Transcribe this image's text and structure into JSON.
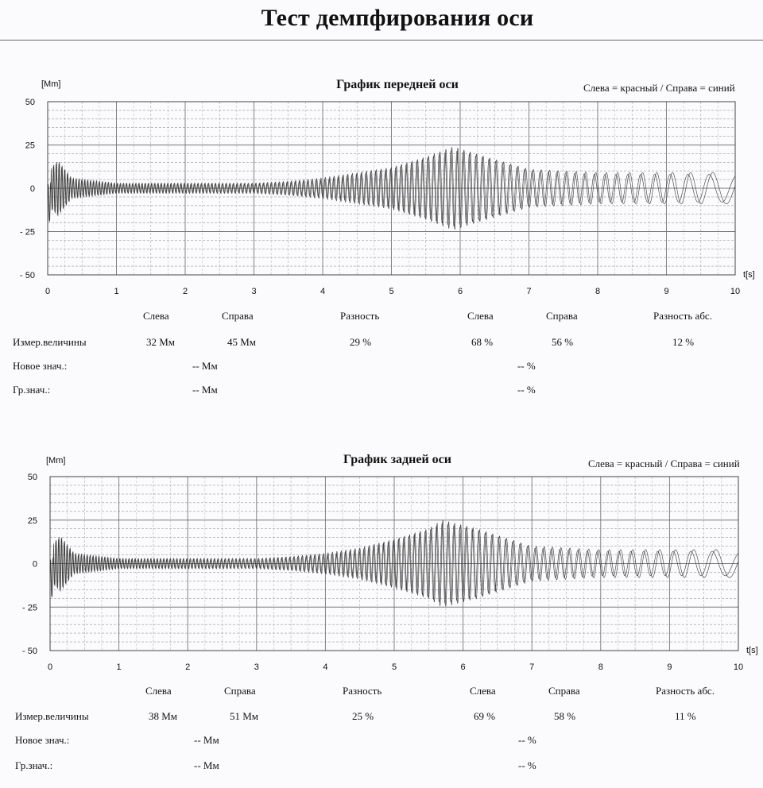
{
  "page": {
    "title": "Тест демпфирования оси"
  },
  "legend_text": "Слева = красный / Справа = синий",
  "unit_label": "[Mm]",
  "time_label": "t[s]",
  "row_labels": {
    "measured": "Измер.величины",
    "new": "Новое знач.:",
    "limit": "Гр.знач.:"
  },
  "col_headers": {
    "left": "Слева",
    "right": "Справа",
    "diff": "Разность",
    "left_pct": "Слева",
    "right_pct": "Справа",
    "diff_abs": "Разность абс."
  },
  "front": {
    "title": "График передней оси",
    "measured": {
      "left": "32 Мм",
      "right": "45 Мм",
      "diff": "29 %",
      "left_pct": "68 %",
      "right_pct": "56 %",
      "diff_abs": "12 %"
    },
    "new_value": {
      "mm": "-- Мм",
      "pct": "-- %"
    },
    "limit_value": {
      "mm": "-- Мм",
      "pct": "-- %"
    }
  },
  "rear": {
    "title": "График задней оси",
    "measured": {
      "left": "38 Мм",
      "right": "51 Мм",
      "diff": "25 %",
      "left_pct": "69 %",
      "right_pct": "58 %",
      "diff_abs": "11 %"
    },
    "new_value": {
      "mm": "-- Мм",
      "pct": "-- %"
    },
    "limit_value": {
      "mm": "-- Мм",
      "pct": "-- %"
    }
  },
  "chart_data": [
    {
      "type": "line",
      "title": "График передней оси",
      "xlabel": "t[s]",
      "ylabel": "[Mm]",
      "xlim": [
        0,
        10
      ],
      "ylim": [
        -50,
        50
      ],
      "x_ticks": [
        0,
        1,
        2,
        3,
        4,
        5,
        6,
        7,
        8,
        9,
        10
      ],
      "y_tick_labels": [
        "50",
        "25",
        "0",
        "- 25",
        "- 50"
      ],
      "grid": true,
      "legend": "top-right",
      "series": [
        {
          "name": "Слева",
          "color": "#333333",
          "envelope": {
            "t": [
              0,
              0.15,
              0.35,
              1,
              2,
              3,
              3.5,
              4,
              4.5,
              5,
              5.5,
              5.9,
              6.3,
              7,
              8,
              9,
              10
            ],
            "amplitude": [
              10,
              16,
              6,
              3,
              3,
              3,
              4,
              6,
              9,
              12,
              18,
              24,
              19,
              11,
              9,
              9,
              9
            ]
          },
          "frequency_hz": {
            "t": [
              0,
              10
            ],
            "f": [
              25,
              2
            ]
          }
        },
        {
          "name": "Справа",
          "color": "#333333",
          "envelope": {
            "t": [
              0,
              0.15,
              0.35,
              1,
              2,
              3,
              3.5,
              4,
              4.5,
              5,
              5.5,
              5.9,
              6.3,
              7,
              8,
              9,
              10
            ],
            "amplitude": [
              10,
              15,
              5,
              2.5,
              2.5,
              2.5,
              3.5,
              5,
              8,
              11,
              17,
              22,
              18,
              10,
              8,
              8,
              8
            ]
          },
          "frequency_hz": {
            "t": [
              0,
              10
            ],
            "f": [
              25,
              2
            ]
          }
        }
      ]
    },
    {
      "type": "line",
      "title": "График задней оси",
      "xlabel": "t[s]",
      "ylabel": "[Mm]",
      "xlim": [
        0,
        10
      ],
      "ylim": [
        -50,
        50
      ],
      "x_ticks": [
        0,
        1,
        2,
        3,
        4,
        5,
        6,
        7,
        8,
        9,
        10
      ],
      "y_tick_labels": [
        "50",
        "25",
        "0",
        "- 25",
        "- 50"
      ],
      "grid": true,
      "legend": "top-right",
      "series": [
        {
          "name": "Слева",
          "color": "#333333",
          "envelope": {
            "t": [
              0,
              0.15,
              0.35,
              1,
              2,
              3,
              3.5,
              4,
              4.5,
              5,
              5.5,
              5.7,
              6.2,
              7,
              8,
              9,
              10
            ],
            "amplitude": [
              10,
              16,
              6,
              3,
              3,
              3,
              4,
              6,
              9,
              14,
              20,
              25,
              20,
              10,
              8,
              8,
              8
            ]
          },
          "frequency_hz": {
            "t": [
              0,
              10
            ],
            "f": [
              25,
              2
            ]
          }
        },
        {
          "name": "Справа",
          "color": "#333333",
          "envelope": {
            "t": [
              0,
              0.15,
              0.35,
              1,
              2,
              3,
              3.5,
              4,
              4.5,
              5,
              5.5,
              5.7,
              6.2,
              7,
              8,
              9,
              10
            ],
            "amplitude": [
              10,
              15,
              5,
              2.5,
              2.5,
              2.5,
              3.5,
              5,
              8,
              13,
              19,
              23,
              19,
              9,
              7,
              7,
              7
            ]
          },
          "frequency_hz": {
            "t": [
              0,
              10
            ],
            "f": [
              25,
              2
            ]
          }
        }
      ]
    }
  ]
}
